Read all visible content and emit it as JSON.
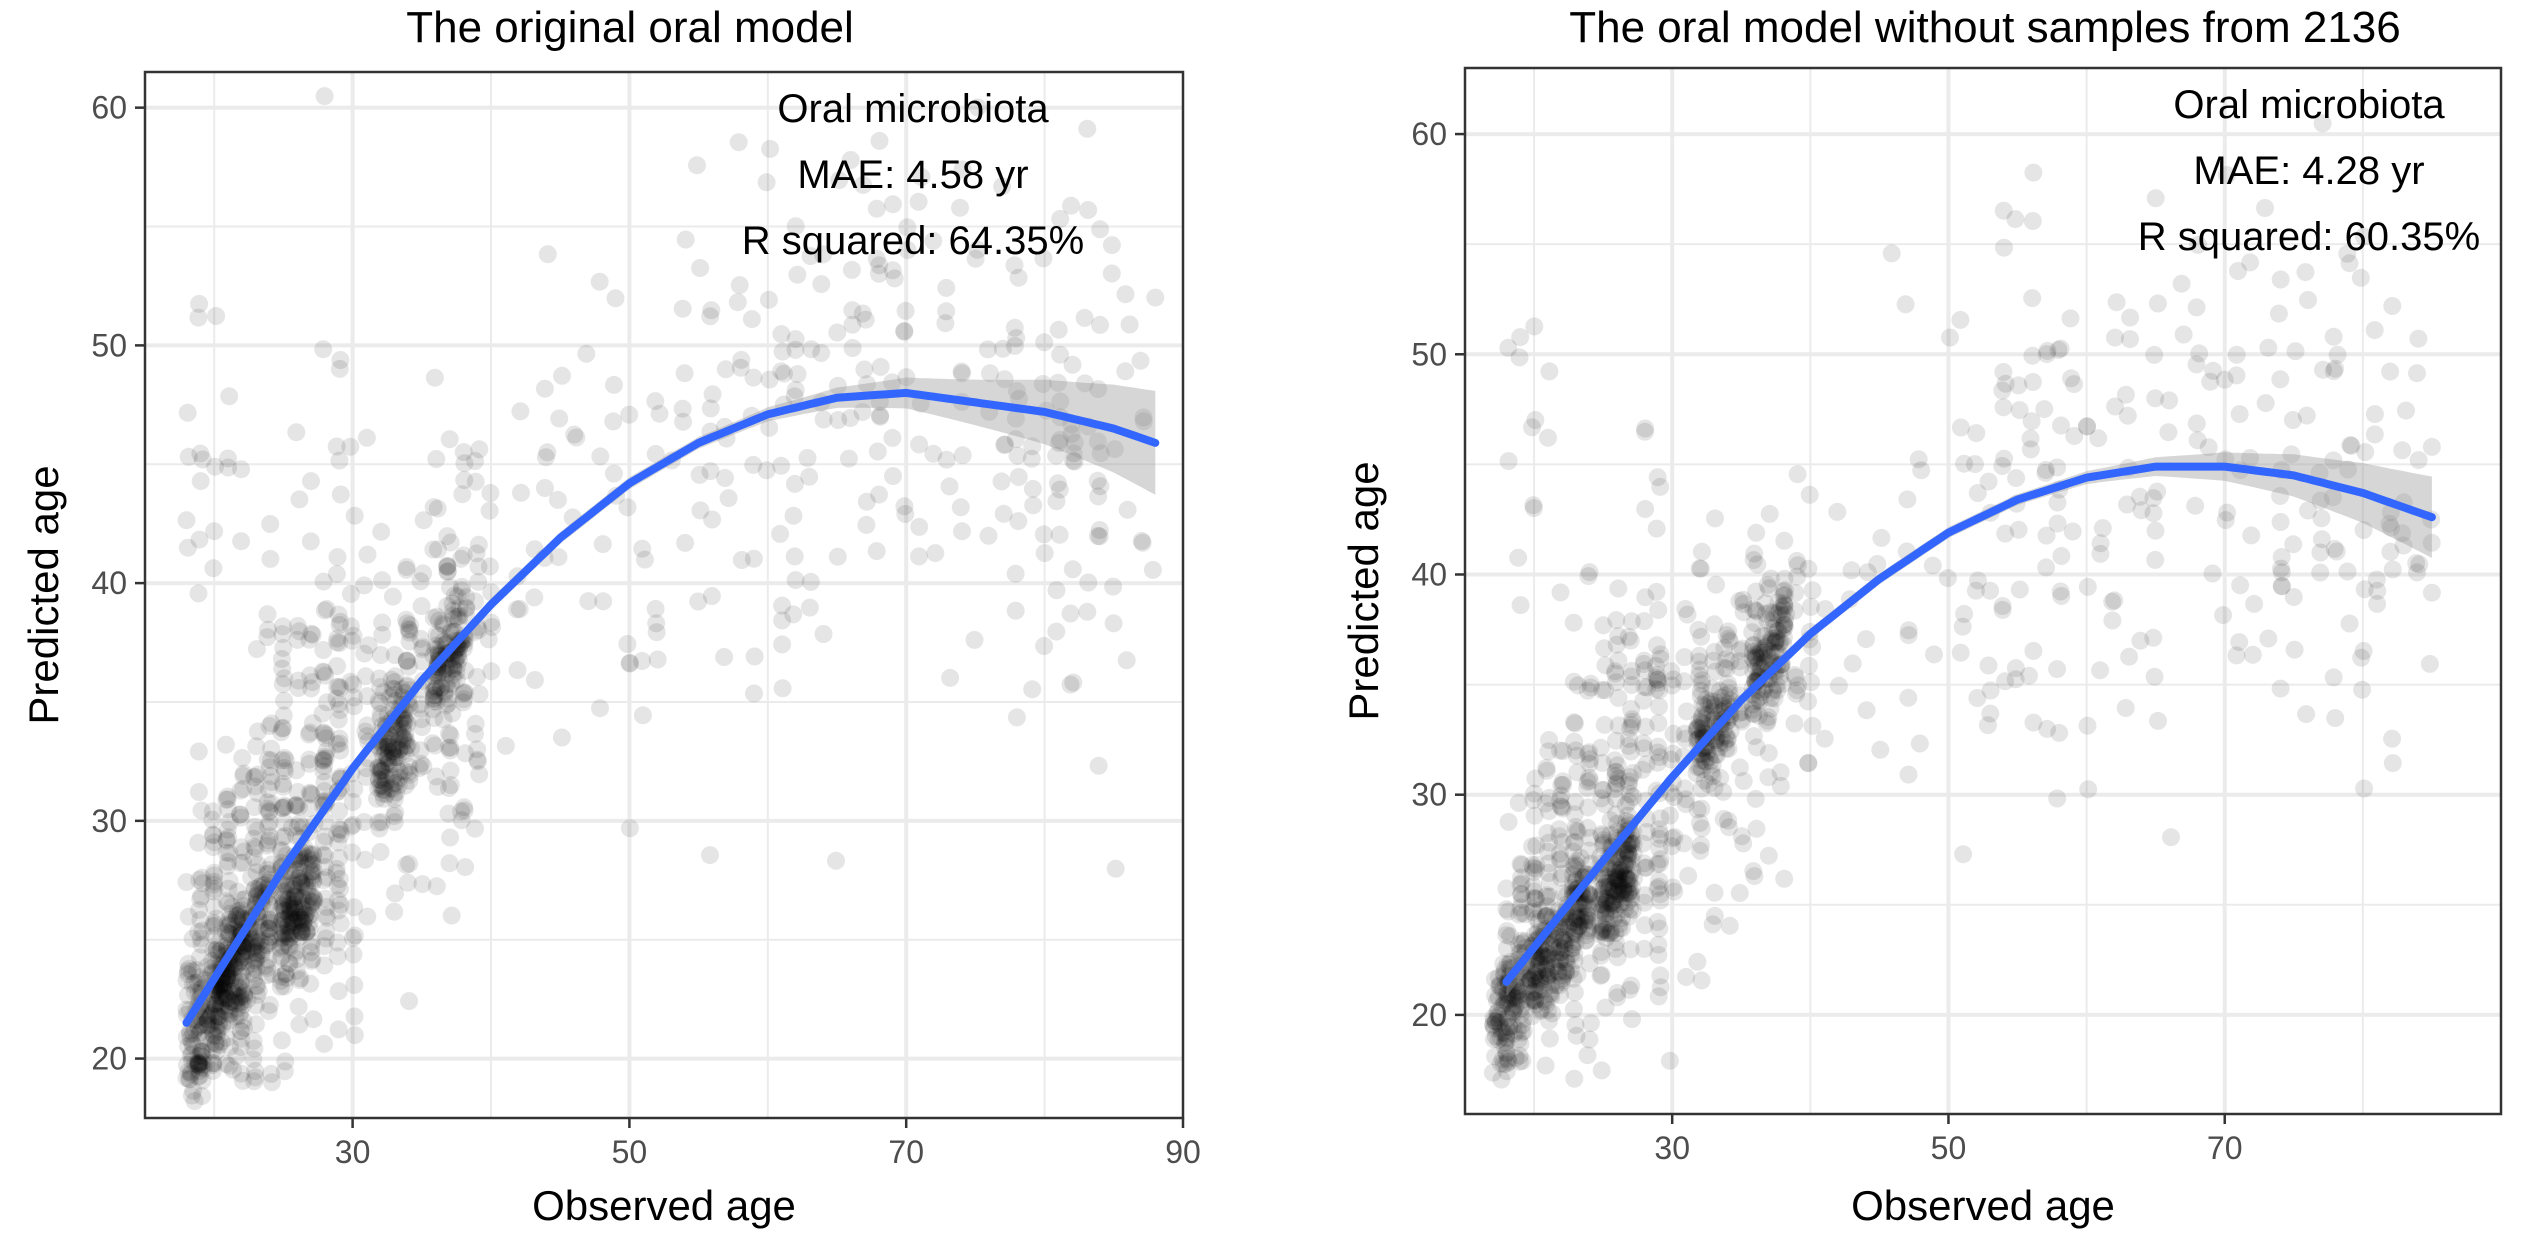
{
  "figure": {
    "background": "#ffffff",
    "point_color": "#000000",
    "point_opacity": 0.1,
    "fit_color": "#3366ff",
    "ribbon_color": "#999999",
    "grid_color": "#ebebeb",
    "axis_text_color": "#4d4d4d"
  },
  "chart_data": [
    {
      "type": "scatter",
      "title": "The original oral model",
      "xlabel": "Observed age",
      "ylabel": "Predicted age",
      "xlim": [
        15,
        90
      ],
      "ylim": [
        17.5,
        61.5
      ],
      "xticks": [
        30,
        50,
        70,
        90
      ],
      "yticks": [
        20,
        30,
        40,
        50,
        60
      ],
      "grid": true,
      "annotation": [
        "Oral microbiota",
        "MAE: 4.58 yr",
        "R squared: 64.35%"
      ],
      "fit": {
        "method": "quadratic smooth with confidence band",
        "x": [
          18,
          25,
          30,
          35,
          40,
          45,
          50,
          55,
          60,
          65,
          70,
          75,
          80,
          85,
          88
        ],
        "y": [
          21.5,
          28.0,
          32.2,
          35.9,
          39.1,
          41.9,
          44.2,
          45.9,
          47.1,
          47.8,
          48.0,
          47.6,
          47.2,
          46.5,
          45.9
        ]
      },
      "points_summary": {
        "n_approx": 1700,
        "dense_clusters": [
          {
            "x": 20,
            "y": 22.5
          },
          {
            "x": 22,
            "y": 24.5
          },
          {
            "x": 26,
            "y": 26.5
          },
          {
            "x": 33,
            "y": 33.0
          },
          {
            "x": 37,
            "y": 37.0
          }
        ]
      }
    },
    {
      "type": "scatter",
      "title": "The oral model without samples from 2136",
      "xlabel": "Observed age",
      "ylabel": "Predicted age",
      "xlim": [
        15,
        90
      ],
      "ylim": [
        15.5,
        63
      ],
      "xticks": [
        30,
        50,
        70
      ],
      "yticks": [
        20,
        30,
        40,
        50,
        60
      ],
      "grid": true,
      "annotation": [
        "Oral microbiota",
        "MAE: 4.28 yr",
        "R squared: 60.35%"
      ],
      "fit": {
        "method": "quadratic smooth with confidence band",
        "x": [
          18,
          25,
          30,
          35,
          40,
          45,
          50,
          55,
          60,
          65,
          70,
          75,
          80,
          85
        ],
        "y": [
          21.5,
          27.0,
          30.8,
          34.3,
          37.3,
          39.8,
          41.9,
          43.4,
          44.4,
          44.9,
          44.9,
          44.5,
          43.7,
          42.6
        ]
      },
      "points_summary": {
        "n_approx": 1500,
        "dense_clusters": [
          {
            "x": 19,
            "y": 21.5
          },
          {
            "x": 22,
            "y": 23.5
          },
          {
            "x": 26,
            "y": 26.0
          },
          {
            "x": 33,
            "y": 33.0
          },
          {
            "x": 37,
            "y": 36.5
          }
        ]
      }
    }
  ]
}
